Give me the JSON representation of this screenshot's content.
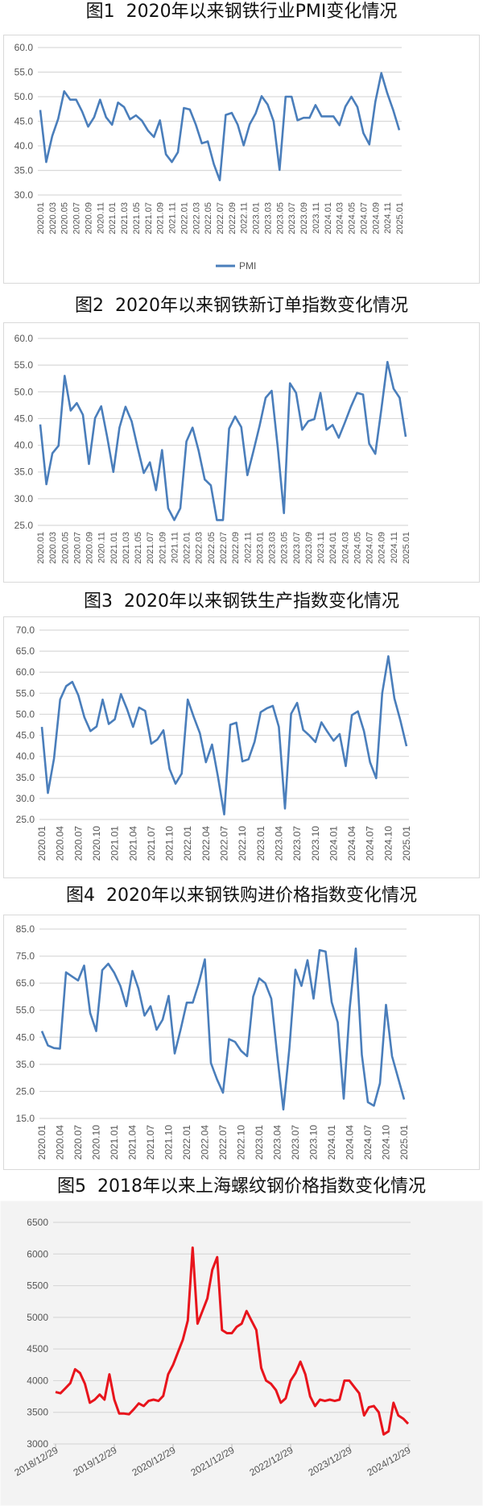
{
  "chart_data": [
    {
      "type": "line",
      "title": "图1  2020年以来钢铁行业PMI变化情况",
      "ylim": [
        30,
        60
      ],
      "ytick_labels": [
        "30.0",
        "35.0",
        "40.0",
        "45.0",
        "50.0",
        "55.0",
        "60.0"
      ],
      "grid": true,
      "legend": "bottom",
      "color": "#4a7ebb",
      "x": [
        "2020.01",
        "2020.02",
        "2020.03",
        "2020.04",
        "2020.05",
        "2020.06",
        "2020.07",
        "2020.08",
        "2020.09",
        "2020.10",
        "2020.11",
        "2020.12",
        "2021.01",
        "2021.02",
        "2021.03",
        "2021.04",
        "2021.05",
        "2021.06",
        "2021.07",
        "2021.08",
        "2021.09",
        "2021.10",
        "2021.11",
        "2021.12",
        "2022.01",
        "2022.02",
        "2022.03",
        "2022.04",
        "2022.05",
        "2022.06",
        "2022.07",
        "2022.08",
        "2022.09",
        "2022.10",
        "2022.11",
        "2022.12",
        "2023.01",
        "2023.02",
        "2023.03",
        "2023.04",
        "2023.05",
        "2023.06",
        "2023.07",
        "2023.08",
        "2023.09",
        "2023.10",
        "2023.11",
        "2023.12",
        "2024.01",
        "2024.02",
        "2024.03",
        "2024.04",
        "2024.05",
        "2024.06",
        "2024.07",
        "2024.08",
        "2024.09",
        "2024.10",
        "2024.11",
        "2024.12",
        "2025.01"
      ],
      "xtick_labels": [
        "2020.01",
        "2020.03",
        "2020.05",
        "2020.07",
        "2020.09",
        "2020.11",
        "2021.01",
        "2021.03",
        "2021.05",
        "2021.07",
        "2021.09",
        "2021.11",
        "2022.01",
        "2022.03",
        "2022.05",
        "2022.07",
        "2022.09",
        "2022.11",
        "2023.01",
        "2023.03",
        "2023.05",
        "2023.07",
        "2023.09",
        "2023.11",
        "2024.01",
        "2024.03",
        "2024.05",
        "2024.07",
        "2024.09",
        "2024.11",
        "2025.01"
      ],
      "series": [
        {
          "name": "PMI",
          "values": [
            47.3,
            36.7,
            42.0,
            45.5,
            51.1,
            49.4,
            49.4,
            47.0,
            43.9,
            45.8,
            49.4,
            45.8,
            44.3,
            48.8,
            47.9,
            45.4,
            46.2,
            45.1,
            43.1,
            41.8,
            45.2,
            38.3,
            36.7,
            38.7,
            47.7,
            47.4,
            44.3,
            40.5,
            40.9,
            36.3,
            33.0,
            46.3,
            46.7,
            44.3,
            40.1,
            44.4,
            46.6,
            50.1,
            48.4,
            45.0,
            35.1,
            50.0,
            50.0,
            45.2,
            45.7,
            45.7,
            48.3,
            46.0,
            46.0,
            46.0,
            44.2,
            48.0,
            50.0,
            47.9,
            42.6,
            40.3,
            49.0,
            54.8,
            50.7,
            47.2,
            43.2
          ]
        }
      ]
    },
    {
      "type": "line",
      "title": "图2  2020年以来钢铁新订单指数变化情况",
      "ylim": [
        25,
        60
      ],
      "ytick_labels": [
        "25.0",
        "30.0",
        "35.0",
        "40.0",
        "45.0",
        "50.0",
        "55.0",
        "60.0"
      ],
      "grid": true,
      "color": "#4a7ebb",
      "xtick_labels": [
        "2020.01",
        "2020.03",
        "2020.05",
        "2020.07",
        "2020.09",
        "2020.11",
        "2021.01",
        "2021.03",
        "2021.05",
        "2021.07",
        "2021.09",
        "2021.11",
        "2022.01",
        "2022.03",
        "2022.05",
        "2022.07",
        "2022.09",
        "2022.11",
        "2023.01",
        "2023.03",
        "2023.05",
        "2023.07",
        "2023.09",
        "2023.11",
        "2024.01",
        "2024.03",
        "2024.05",
        "2024.07",
        "2024.09",
        "2024.11",
        "2025.01"
      ],
      "series": [
        {
          "values": [
            43.9,
            32.7,
            38.5,
            39.9,
            53.0,
            46.5,
            47.9,
            45.7,
            36.5,
            45.1,
            47.3,
            41.5,
            35.0,
            43.3,
            47.2,
            44.5,
            39.5,
            34.8,
            36.8,
            31.6,
            39.1,
            28.2,
            26.0,
            28.2,
            40.7,
            43.3,
            39.0,
            33.6,
            32.5,
            26.0,
            26.0,
            43.1,
            45.4,
            43.4,
            34.4,
            38.9,
            43.6,
            48.9,
            50.2,
            39.5,
            27.3,
            51.6,
            49.8,
            42.9,
            44.5,
            44.9,
            49.8,
            42.9,
            43.8,
            41.4,
            44.2,
            47.2,
            49.8,
            49.5,
            40.3,
            38.4,
            46.7,
            55.6,
            50.6,
            48.9,
            41.6
          ]
        }
      ]
    },
    {
      "type": "line",
      "title": "图3  2020年以来钢铁生产指数变化情况",
      "ylim": [
        25,
        70
      ],
      "ytick_labels": [
        "25.0",
        "30.0",
        "35.0",
        "40.0",
        "45.0",
        "50.0",
        "55.0",
        "60.0",
        "65.0",
        "70.0"
      ],
      "grid": true,
      "color": "#4a7ebb",
      "xtick_labels": [
        "2020.01",
        "2020.04",
        "2020.07",
        "2020.10",
        "2021.01",
        "2021.04",
        "2021.07",
        "2021.10",
        "2022.01",
        "2022.04",
        "2022.07",
        "2022.10",
        "2023.01",
        "2023.04",
        "2023.07",
        "2023.10",
        "2024.01",
        "2024.04",
        "2024.07",
        "2024.10",
        "2025.01"
      ],
      "series": [
        {
          "values": [
            47.0,
            31.3,
            39.5,
            53.5,
            56.7,
            57.7,
            54.5,
            49.3,
            46.0,
            47.1,
            53.5,
            47.7,
            48.8,
            54.8,
            51.3,
            47.0,
            51.6,
            50.8,
            43.0,
            44.0,
            46.2,
            37.0,
            33.5,
            35.9,
            53.5,
            49.3,
            45.5,
            38.6,
            42.8,
            35.0,
            26.2,
            47.5,
            48.0,
            38.8,
            39.3,
            43.5,
            50.5,
            51.4,
            52.0,
            47.0,
            27.6,
            50.1,
            52.7,
            46.3,
            45.0,
            43.4,
            48.1,
            45.8,
            43.7,
            45.3,
            37.7,
            49.8,
            50.7,
            46.0,
            38.6,
            34.8,
            55.0,
            63.8,
            53.8,
            48.5,
            42.4
          ]
        }
      ]
    },
    {
      "type": "line",
      "title": "图4  2020年以来钢铁购进价格指数变化情况",
      "ylim": [
        15,
        85
      ],
      "ytick_labels": [
        "15.0",
        "25.0",
        "35.0",
        "45.0",
        "55.0",
        "65.0",
        "75.0",
        "85.0"
      ],
      "grid": true,
      "color": "#4a7ebb",
      "xtick_labels": [
        "2020.01",
        "2020.04",
        "2020.07",
        "2020.10",
        "2021.01",
        "2021.04",
        "2021.07",
        "2021.10",
        "2022.01",
        "2022.04",
        "2022.07",
        "2022.10",
        "2023.01",
        "2023.04",
        "2023.07",
        "2023.10",
        "2024.01",
        "2024.04",
        "2024.07",
        "2024.10",
        "2025.01"
      ],
      "series": [
        {
          "values": [
            47.3,
            42.0,
            41.0,
            40.8,
            69.0,
            67.5,
            66.0,
            71.5,
            54.0,
            47.3,
            69.8,
            72.2,
            68.8,
            64.0,
            56.5,
            69.5,
            63.0,
            53.0,
            56.5,
            47.8,
            51.5,
            60.3,
            39.0,
            48.0,
            57.8,
            57.8,
            65.0,
            73.8,
            35.5,
            29.5,
            24.5,
            44.3,
            43.3,
            40.0,
            38.0,
            60.0,
            66.8,
            65.0,
            59.3,
            38.0,
            18.3,
            41.0,
            70.0,
            64.0,
            73.5,
            59.3,
            77.2,
            76.7,
            58.0,
            50.5,
            22.3,
            56.0,
            77.8,
            38.5,
            21.0,
            19.7,
            28.0,
            57.0,
            38.0,
            30.0,
            22.0
          ]
        }
      ]
    },
    {
      "type": "line",
      "title": "图5  2018年以来上海螺纹钢价格指数变化情况",
      "ylim": [
        3000,
        6500
      ],
      "ytick_labels": [
        "3000",
        "3500",
        "4000",
        "4500",
        "5000",
        "5500",
        "6000",
        "6500"
      ],
      "grid": true,
      "color": "#e8141c",
      "xtick_labels": [
        "2018/12/29",
        "2019/12/29",
        "2020/12/29",
        "2021/12/29",
        "2022/12/29",
        "2023/12/29",
        "2024/12/29"
      ],
      "x": [
        "2019.01",
        "2019.02",
        "2019.03",
        "2019.04",
        "2019.05",
        "2019.06",
        "2019.07",
        "2019.08",
        "2019.09",
        "2019.10",
        "2019.11",
        "2019.12",
        "2020.01",
        "2020.02",
        "2020.03",
        "2020.04",
        "2020.05",
        "2020.06",
        "2020.07",
        "2020.08",
        "2020.09",
        "2020.10",
        "2020.11",
        "2020.12",
        "2021.01",
        "2021.02",
        "2021.03",
        "2021.04",
        "2021.05",
        "2021.06",
        "2021.07",
        "2021.08",
        "2021.09",
        "2021.10",
        "2021.11",
        "2021.12",
        "2022.01",
        "2022.02",
        "2022.03",
        "2022.04",
        "2022.05",
        "2022.06",
        "2022.07",
        "2022.08",
        "2022.09",
        "2022.10",
        "2022.11",
        "2022.12",
        "2023.01",
        "2023.02",
        "2023.03",
        "2023.04",
        "2023.05",
        "2023.06",
        "2023.07",
        "2023.08",
        "2023.09",
        "2023.10",
        "2023.11",
        "2023.12",
        "2024.01",
        "2024.02",
        "2024.03",
        "2024.04",
        "2024.05",
        "2024.06",
        "2024.07",
        "2024.08",
        "2024.09",
        "2024.10",
        "2024.11",
        "2024.12",
        "2025.01"
      ],
      "series": [
        {
          "values": [
            3820,
            3800,
            3880,
            3960,
            4180,
            4120,
            3950,
            3650,
            3700,
            3780,
            3700,
            4100,
            3700,
            3480,
            3480,
            3470,
            3550,
            3640,
            3600,
            3680,
            3700,
            3680,
            3760,
            4100,
            4250,
            4450,
            4650,
            4950,
            6100,
            4900,
            5100,
            5300,
            5750,
            5950,
            4800,
            4750,
            4750,
            4850,
            4900,
            5100,
            4950,
            4800,
            4200,
            4000,
            3950,
            3850,
            3650,
            3720,
            4000,
            4120,
            4300,
            4100,
            3750,
            3600,
            3700,
            3680,
            3700,
            3680,
            3700,
            4000,
            4000,
            3900,
            3800,
            3450,
            3580,
            3600,
            3500,
            3150,
            3200,
            3650,
            3450,
            3400,
            3320
          ]
        }
      ]
    }
  ]
}
